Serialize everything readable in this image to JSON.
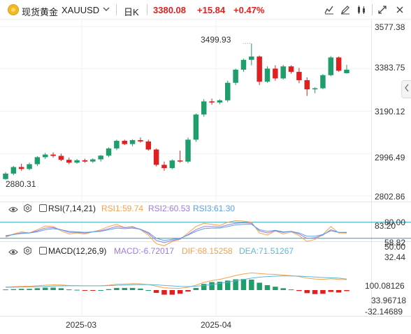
{
  "header": {
    "symbol_name": "现货黄金",
    "symbol_code": "XAUUSD",
    "symbol_menu_icon": "chevron-down-icon",
    "interval": "日K",
    "price": "3380.08",
    "change": "+15.84",
    "change_pct": "+0.47%",
    "up_color": "#e02020",
    "down_color": "#1f9d6b",
    "toolbar": [
      "chart-type-icon",
      "draw-icon",
      "indicators-icon",
      "fullscreen-icon",
      "close-icon"
    ]
  },
  "price_pane": {
    "y_ticks": [
      "3577.38",
      "3383.75",
      "3190.12",
      "2996.49",
      "2802.86"
    ],
    "annotations": {
      "high": "3499.93",
      "low": "2880.31"
    }
  },
  "rsi": {
    "name": "RSI(7,14,21)",
    "values": [
      {
        "label": "RSI1:59.74",
        "color": "#f5a14d"
      },
      {
        "label": "RSI2:60.53",
        "color": "#9b7be0"
      },
      {
        "label": "RSI3:61.30",
        "color": "#5aa0e8"
      }
    ],
    "levels": [
      "80.00",
      "50.00"
    ],
    "level_color": "#2a9fb8",
    "axis": [
      "83.20",
      "58.82",
      "32.44"
    ]
  },
  "macd": {
    "name": "MACD(12,26,9)",
    "values": [
      {
        "label": "MACD:-6.72017",
        "color": "#9b7be0"
      },
      {
        "label": "DIF:68.15258",
        "color": "#f5a14d"
      },
      {
        "label": "DEA:71.51267",
        "color": "#5ab9d8"
      }
    ],
    "axis": [
      "100.08126",
      "33.96718",
      "-32.14689"
    ]
  },
  "time_axis": [
    "2025-03",
    "2025-04"
  ],
  "chart_data": {
    "type": "candlestick",
    "x_labels": [
      "2025-03",
      "2025-04"
    ],
    "ohlc": [
      [
        2880,
        2912,
        2876,
        2905
      ],
      [
        2905,
        2940,
        2898,
        2935
      ],
      [
        2935,
        2950,
        2918,
        2926
      ],
      [
        2926,
        2955,
        2920,
        2948
      ],
      [
        2948,
        2985,
        2940,
        2980
      ],
      [
        2980,
        3000,
        2972,
        2992
      ],
      [
        2992,
        3002,
        2978,
        2986
      ],
      [
        2986,
        2996,
        2962,
        2968
      ],
      [
        2968,
        2978,
        2948,
        2955
      ],
      [
        2955,
        2972,
        2950,
        2966
      ],
      [
        2966,
        2973,
        2955,
        2960
      ],
      [
        2960,
        2975,
        2954,
        2970
      ],
      [
        2970,
        2990,
        2960,
        2987
      ],
      [
        2987,
        3025,
        2980,
        3020
      ],
      [
        3020,
        3060,
        3012,
        3055
      ],
      [
        3055,
        3060,
        3035,
        3040
      ],
      [
        3040,
        3062,
        3030,
        3058
      ],
      [
        3058,
        3070,
        3046,
        3052
      ],
      [
        3052,
        3060,
        3010,
        3015
      ],
      [
        3015,
        3020,
        2938,
        2945
      ],
      [
        2945,
        2960,
        2918,
        2930
      ],
      [
        2930,
        2970,
        2925,
        2965
      ],
      [
        2965,
        3010,
        2955,
        2960
      ],
      [
        2960,
        3070,
        2952,
        3060
      ],
      [
        3060,
        3180,
        3050,
        3175
      ],
      [
        3175,
        3245,
        3165,
        3235
      ],
      [
        3235,
        3248,
        3220,
        3230
      ],
      [
        3230,
        3245,
        3222,
        3240
      ],
      [
        3240,
        3330,
        3232,
        3320
      ],
      [
        3320,
        3385,
        3310,
        3380
      ],
      [
        3380,
        3430,
        3370,
        3425
      ],
      [
        3425,
        3500,
        3400,
        3440
      ],
      [
        3440,
        3445,
        3310,
        3325
      ],
      [
        3325,
        3395,
        3320,
        3385
      ],
      [
        3385,
        3400,
        3330,
        3340
      ],
      [
        3340,
        3402,
        3335,
        3395
      ],
      [
        3395,
        3400,
        3362,
        3370
      ],
      [
        3370,
        3388,
        3318,
        3332
      ],
      [
        3332,
        3345,
        3260,
        3290
      ],
      [
        3290,
        3300,
        3272,
        3295
      ],
      [
        3295,
        3360,
        3290,
        3355
      ],
      [
        3355,
        3442,
        3350,
        3436
      ],
      [
        3436,
        3440,
        3370,
        3375
      ],
      [
        3364,
        3402,
        3362,
        3380
      ]
    ],
    "y_range": [
      2802.86,
      3577.38
    ],
    "high_marker": 3499.93,
    "low_marker": 2880.31,
    "rsi_series": {
      "RSI1": [
        52,
        58,
        62,
        60,
        66,
        73,
        72,
        64,
        58,
        60,
        58,
        62,
        66,
        72,
        76,
        70,
        72,
        66,
        56,
        40,
        36,
        44,
        48,
        60,
        72,
        78,
        76,
        74,
        80,
        83,
        82,
        80,
        60,
        56,
        64,
        58,
        62,
        55,
        44,
        48,
        57,
        72,
        60,
        59.74
      ],
      "RSI2": [
        54,
        57,
        60,
        60,
        64,
        69,
        70,
        66,
        61,
        61,
        60,
        62,
        64,
        68,
        72,
        70,
        71,
        67,
        59,
        46,
        42,
        46,
        49,
        57,
        66,
        72,
        72,
        71,
        75,
        78,
        79,
        78,
        64,
        60,
        64,
        61,
        63,
        58,
        50,
        51,
        56,
        66,
        61,
        60.53
      ],
      "RSI3": [
        55,
        57,
        59,
        60,
        62,
        66,
        68,
        66,
        63,
        62,
        61,
        62,
        63,
        66,
        69,
        68,
        69,
        67,
        61,
        50,
        46,
        48,
        50,
        56,
        63,
        68,
        69,
        69,
        72,
        75,
        76,
        76,
        66,
        63,
        65,
        62,
        63,
        60,
        54,
        54,
        57,
        64,
        61,
        61.3
      ]
    },
    "macd_series": {
      "DIF": [
        20,
        22,
        24,
        25,
        28,
        32,
        34,
        33,
        30,
        29,
        27,
        27,
        28,
        32,
        38,
        40,
        42,
        41,
        36,
        25,
        15,
        12,
        12,
        18,
        32,
        50,
        62,
        70,
        82,
        95,
        105,
        112,
        108,
        104,
        102,
        98,
        94,
        88,
        78,
        72,
        70,
        74,
        70,
        68.15
      ],
      "DEA": [
        18,
        19,
        20,
        21,
        22,
        24,
        26,
        27,
        28,
        28,
        28,
        28,
        28,
        29,
        31,
        33,
        35,
        36,
        36,
        34,
        30,
        27,
        24,
        23,
        25,
        30,
        36,
        43,
        51,
        60,
        69,
        78,
        84,
        88,
        91,
        92,
        92,
        91,
        88,
        85,
        82,
        80,
        78,
        71.51
      ],
      "MACD": [
        4,
        6,
        8,
        8,
        12,
        16,
        16,
        12,
        4,
        2,
        -2,
        -2,
        0,
        6,
        14,
        14,
        14,
        10,
        0,
        -18,
        -30,
        -30,
        -24,
        -10,
        14,
        40,
        52,
        54,
        62,
        70,
        72,
        68,
        48,
        32,
        22,
        12,
        4,
        -6,
        -20,
        -26,
        -24,
        -12,
        -16,
        -6.72
      ]
    }
  }
}
